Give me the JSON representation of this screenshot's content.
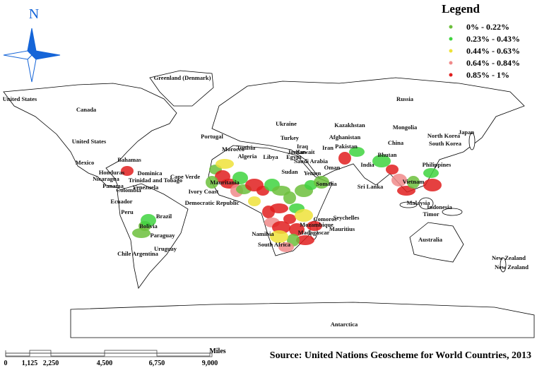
{
  "north_arrow": {
    "label": "N"
  },
  "legend": {
    "title": "Legend",
    "items": [
      {
        "label": "0% - 0.22%",
        "color": "#6cbf3c"
      },
      {
        "label": "0.23% - 0.43%",
        "color": "#3fd43f"
      },
      {
        "label": "0.44% - 0.63%",
        "color": "#eee23a"
      },
      {
        "label": "0.64% - 0.84%",
        "color": "#f08a8a"
      },
      {
        "label": "0.85% - 1%",
        "color": "#e01f1f"
      }
    ]
  },
  "labels": [
    "United States",
    "Canada",
    "United States",
    "Greenland (Denmark)",
    "Russia",
    "Kazakhstan",
    "Mongolia",
    "China",
    "Japan",
    "North Korea",
    "South Korea",
    "India",
    "Sri Lanka",
    "Bhutan",
    "Philippines",
    "Vietnam",
    "Malaysia",
    "Indonesia",
    "Australia",
    "New Zealand",
    "New Zealand",
    "Algeria",
    "Libya",
    "Egypt",
    "Sudan",
    "Yemen",
    "Somalia",
    "Saudi Arabia",
    "Oman",
    "Iran",
    "Turkey",
    "Ukraine",
    "Portugal",
    "Morocco",
    "Cape Verde",
    "Ivory Coast",
    "Democratic Republic",
    "Seychelles",
    "Mauritius",
    "Madagascar",
    "Namibia",
    "South Africa",
    "Brazil",
    "Peru",
    "Bolivia",
    "Paraguay",
    "Uruguay",
    "Chile Argentina",
    "Ecuador",
    "Colombia",
    "Venezuela",
    "Panama",
    "Nicaragua",
    "Honduras",
    "Mexico",
    "Bahamas",
    "Dominica",
    "Trinidad and Tobago",
    "Mozambique",
    "Comoros",
    "Afghanistan",
    "Pakistan",
    "Antarctica",
    "Tunisia",
    "Kuwait",
    "Jordan",
    "Iraq",
    "Mauritania",
    "Timor"
  ],
  "scale_bar": {
    "ticks": [
      "0",
      "1,125",
      "2,250",
      "4,500",
      "6,750",
      "9,000"
    ],
    "unit": "Miles"
  },
  "source": "Source: United Nations Geoscheme for World Countries, 2013"
}
